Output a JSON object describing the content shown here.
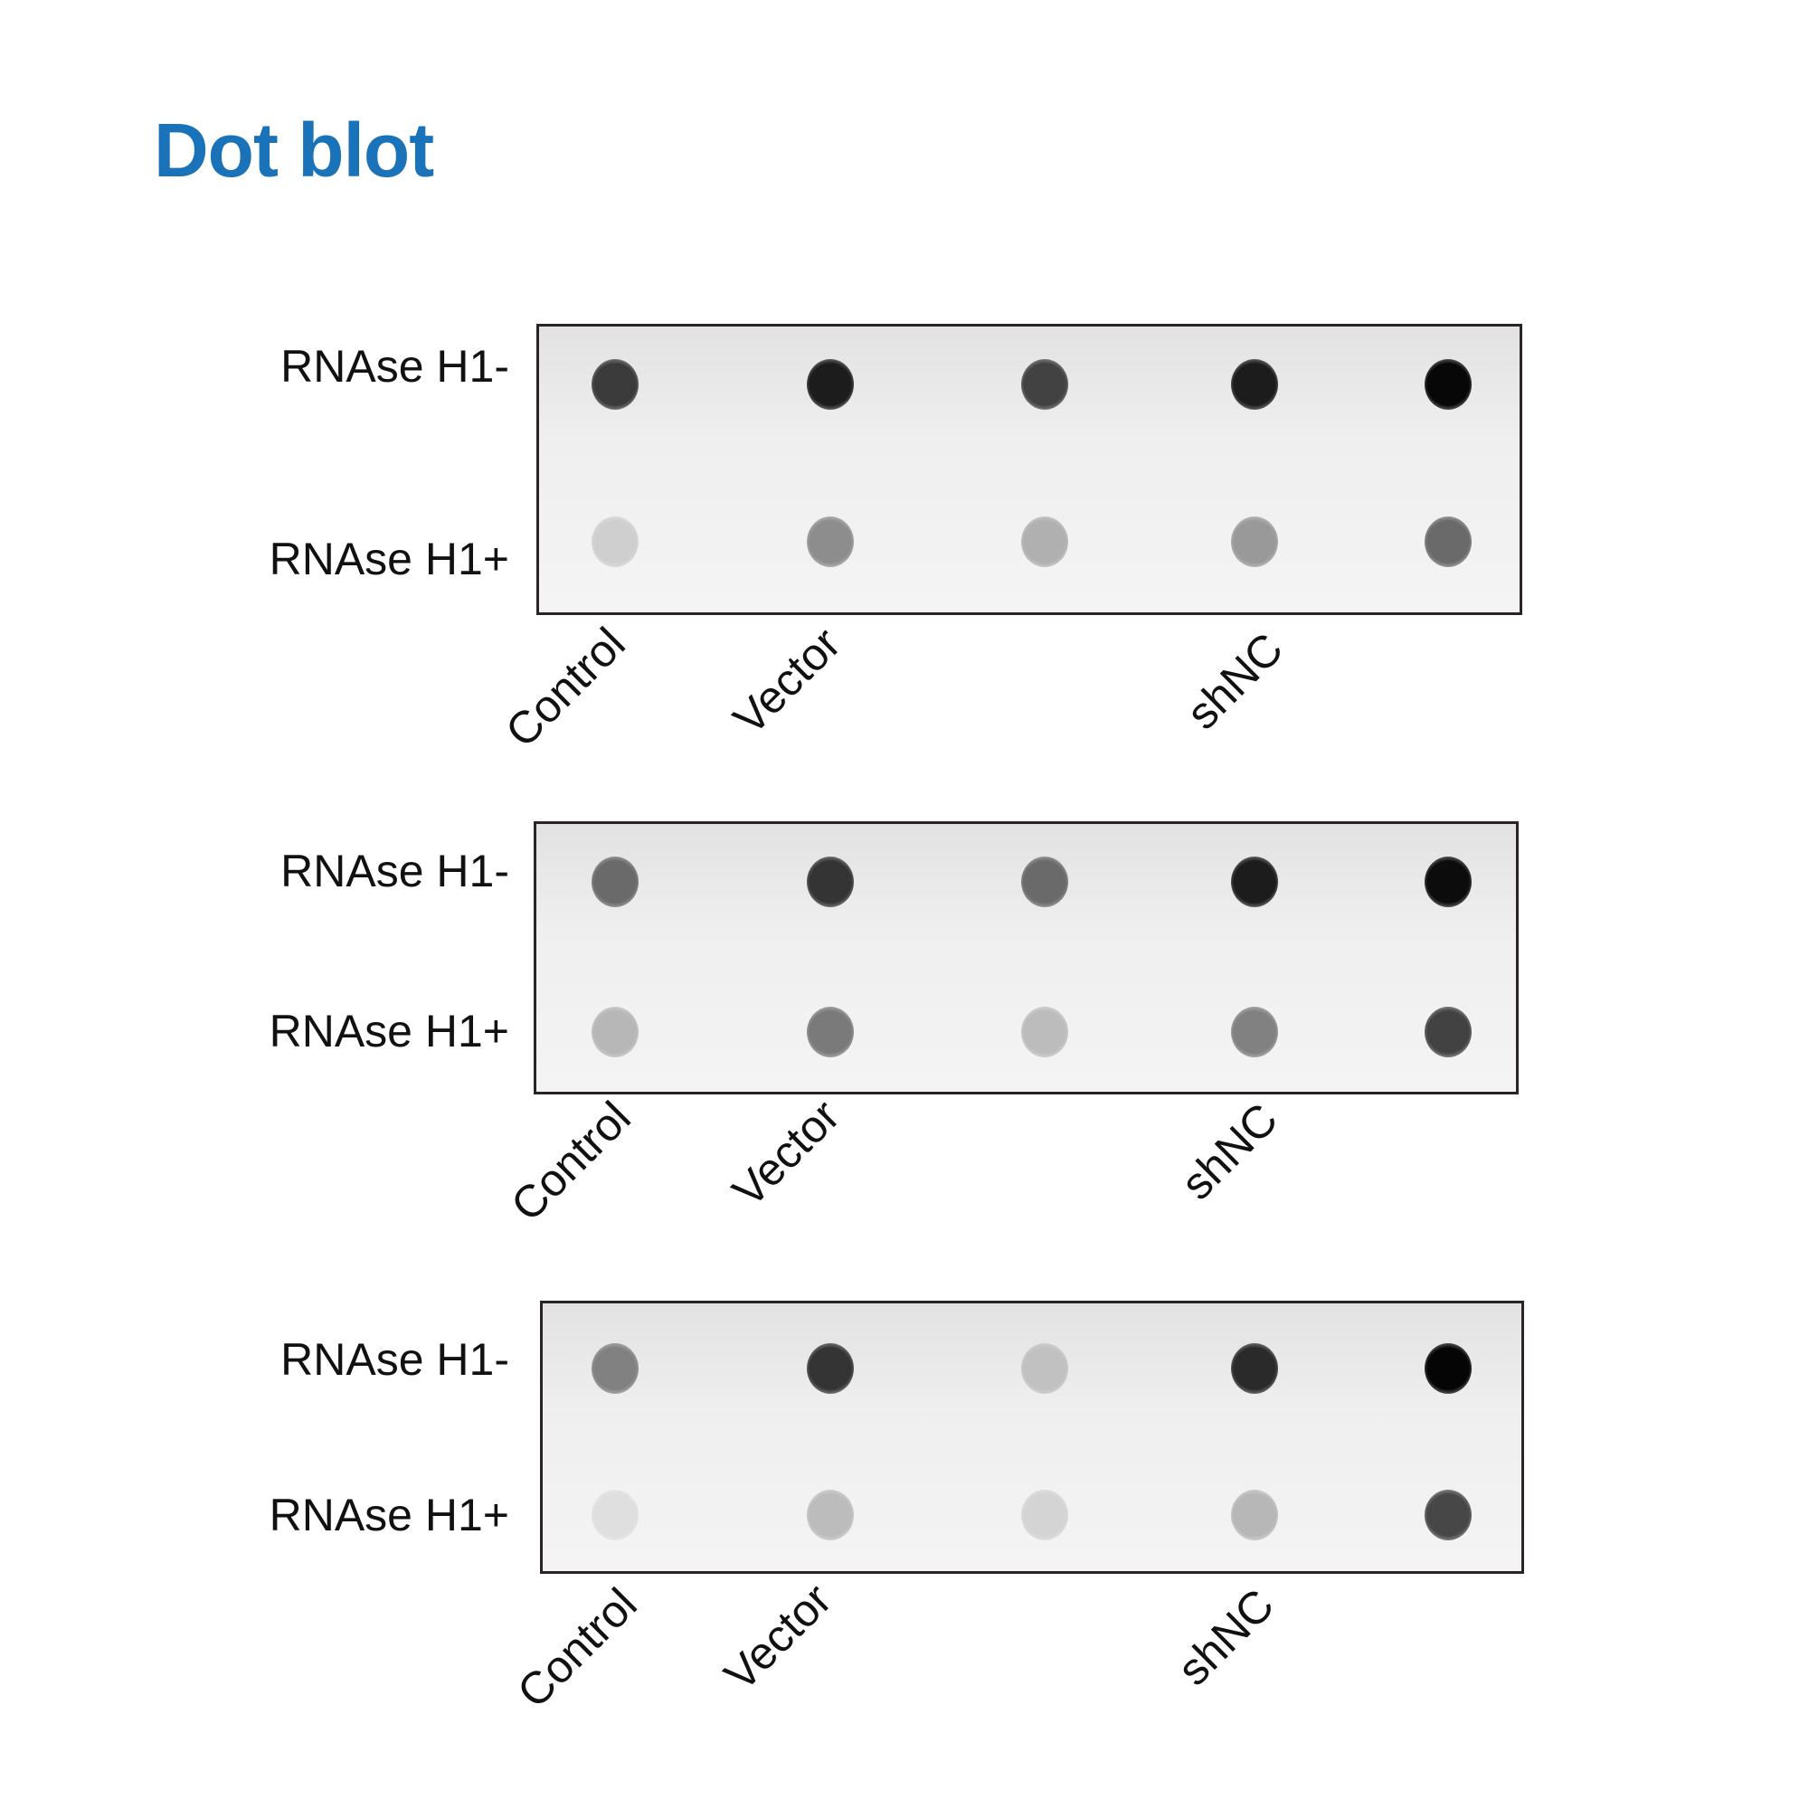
{
  "title": "Dot blot",
  "row_labels": [
    "RNAse H1-",
    "RNAse H1+"
  ],
  "column_labels": [
    "Control",
    "Vector",
    "shNC"
  ],
  "title_color": "#1a73b8",
  "blots": [
    {
      "intensity": [
        [
          0.75,
          0.88,
          0.72,
          0.88,
          0.97
        ],
        [
          0.12,
          0.4,
          0.25,
          0.35,
          0.55
        ]
      ]
    },
    {
      "intensity": [
        [
          0.55,
          0.78,
          0.55,
          0.88,
          0.95
        ],
        [
          0.22,
          0.48,
          0.2,
          0.45,
          0.72
        ]
      ]
    },
    {
      "intensity": [
        [
          0.45,
          0.78,
          0.18,
          0.82,
          0.98
        ],
        [
          0.05,
          0.2,
          0.1,
          0.22,
          0.7
        ]
      ]
    }
  ]
}
